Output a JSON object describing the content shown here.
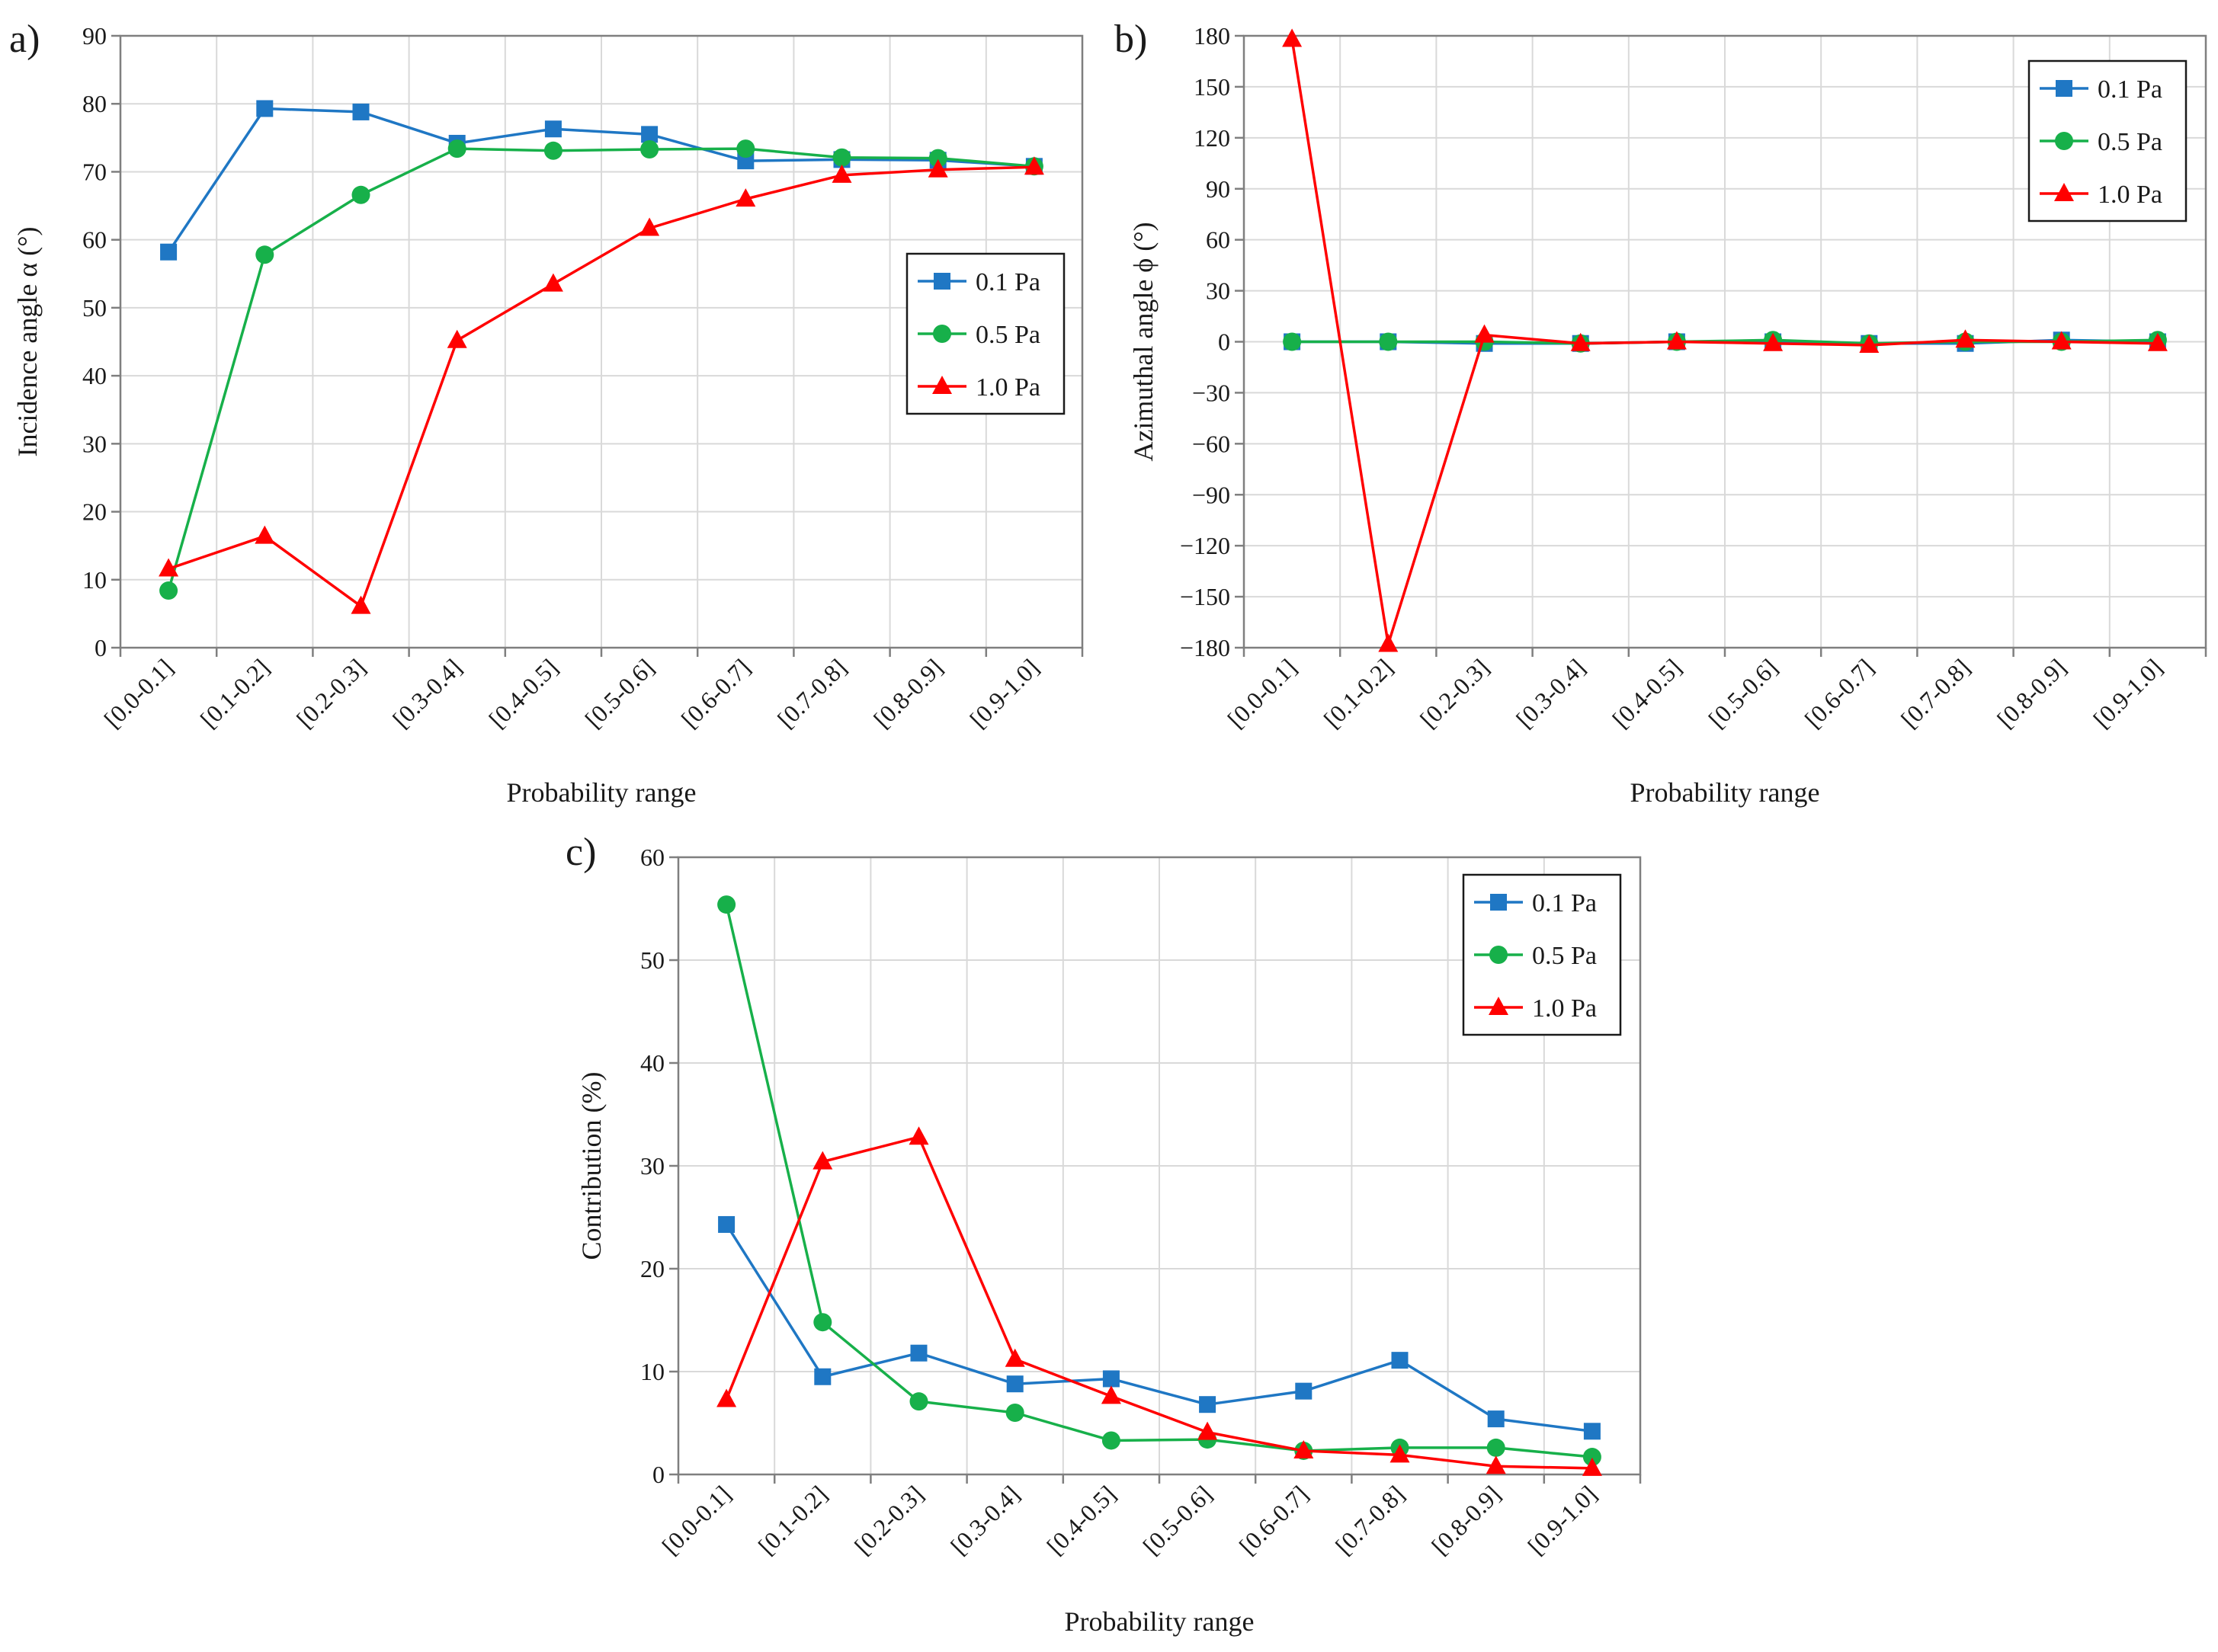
{
  "chart_data": [
    {
      "id": "a",
      "panel_label": "a)",
      "type": "line",
      "categories": [
        "[0.0-0.1]",
        "[0.1-0.2]",
        "[0.2-0.3]",
        "[0.3-0.4]",
        "[0.4-0.5]",
        "[0.5-0.6]",
        "[0.6-0.7]",
        "[0.7-0.8]",
        "[0.8-0.9]",
        "[0.9-1.0]"
      ],
      "xlabel": "Probability range",
      "ylabel": "Incidence angle α (°)",
      "ylim": [
        0,
        90
      ],
      "yticks": [
        0,
        10,
        20,
        30,
        40,
        50,
        60,
        70,
        80,
        90
      ],
      "grid": true,
      "legend_position": "center-right",
      "series": [
        {
          "name": "0.1 Pa",
          "color": "#1f77c4",
          "marker": "square",
          "values": [
            58.2,
            79.3,
            78.8,
            74.2,
            76.3,
            75.5,
            71.6,
            71.8,
            71.7,
            70.8
          ]
        },
        {
          "name": "0.5 Pa",
          "color": "#17b04a",
          "marker": "circle",
          "values": [
            8.4,
            57.8,
            66.6,
            73.4,
            73.1,
            73.3,
            73.4,
            72.1,
            72.0,
            70.8
          ]
        },
        {
          "name": "1.0 Pa",
          "color": "#ff0000",
          "marker": "triangle",
          "values": [
            11.6,
            16.4,
            6.1,
            45.2,
            53.5,
            61.7,
            66.0,
            69.5,
            70.3,
            70.7
          ]
        }
      ]
    },
    {
      "id": "b",
      "panel_label": "b)",
      "type": "line",
      "categories": [
        "[0.0-0.1]",
        "[0.1-0.2]",
        "[0.2-0.3]",
        "[0.3-0.4]",
        "[0.4-0.5]",
        "[0.5-0.6]",
        "[0.6-0.7]",
        "[0.7-0.8]",
        "[0.8-0.9]",
        "[0.9-1.0]"
      ],
      "xlabel": "Probability range",
      "ylabel": "Azimuthal angle ϕ (°)",
      "ylim": [
        -180,
        180
      ],
      "yticks": [
        -180,
        -150,
        -120,
        -90,
        -60,
        -30,
        0,
        30,
        60,
        90,
        120,
        150,
        180
      ],
      "grid": true,
      "legend_position": "top-right",
      "series": [
        {
          "name": "0.1 Pa",
          "color": "#1f77c4",
          "marker": "square",
          "values": [
            0,
            0,
            -1,
            -1,
            0,
            0,
            -1,
            -1,
            1,
            0
          ]
        },
        {
          "name": "0.5 Pa",
          "color": "#17b04a",
          "marker": "circle",
          "values": [
            0,
            0,
            0,
            -1,
            0,
            1,
            -1,
            0,
            0,
            1
          ]
        },
        {
          "name": "1.0 Pa",
          "color": "#ff0000",
          "marker": "triangle",
          "values": [
            178,
            -178,
            4,
            -1,
            0,
            -1,
            -2,
            1,
            0,
            -1
          ]
        }
      ]
    },
    {
      "id": "c",
      "panel_label": "c)",
      "type": "line",
      "categories": [
        "[0.0-0.1]",
        "[0.1-0.2]",
        "[0.2-0.3]",
        "[0.3-0.4]",
        "[0.4-0.5]",
        "[0.5-0.6]",
        "[0.6-0.7]",
        "[0.7-0.8]",
        "[0.8-0.9]",
        "[0.9-1.0]"
      ],
      "xlabel": "Probability range",
      "ylabel": "Contribution (%)",
      "ylim": [
        0,
        60
      ],
      "yticks": [
        0,
        10,
        20,
        30,
        40,
        50,
        60
      ],
      "grid": true,
      "legend_position": "top-right",
      "series": [
        {
          "name": "0.1 Pa",
          "color": "#1f77c4",
          "marker": "square",
          "values": [
            24.3,
            9.5,
            11.8,
            8.8,
            9.3,
            6.8,
            8.1,
            11.1,
            5.4,
            4.2
          ]
        },
        {
          "name": "0.5 Pa",
          "color": "#17b04a",
          "marker": "circle",
          "values": [
            55.4,
            14.8,
            7.1,
            6.0,
            3.3,
            3.4,
            2.3,
            2.6,
            2.6,
            1.7
          ]
        },
        {
          "name": "1.0 Pa",
          "color": "#ff0000",
          "marker": "triangle",
          "values": [
            7.3,
            30.4,
            32.8,
            11.2,
            7.6,
            4.1,
            2.3,
            1.9,
            0.8,
            0.6
          ]
        }
      ]
    }
  ]
}
